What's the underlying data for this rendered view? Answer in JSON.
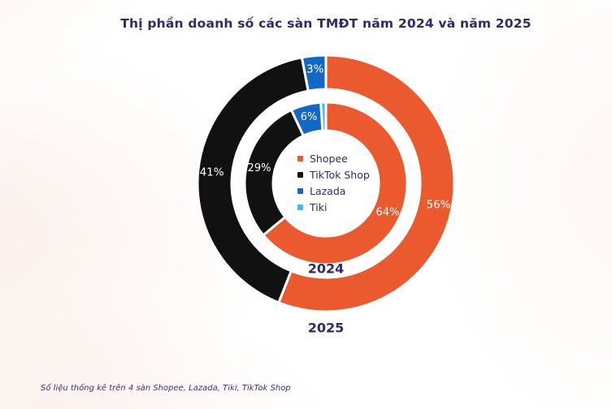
{
  "title": "Thị phần doanh số các sàn TMĐT năm 2024 và năm 2025",
  "footer": "Số liệu thống kê trên 4 sàn Shopee, Lazada, Tiki, TikTok Shop",
  "legend": [
    {
      "label": "Shopee",
      "color": "#ea5a2e"
    },
    {
      "label": "TikTok Shop",
      "color": "#111111"
    },
    {
      "label": "Lazada",
      "color": "#1268c4"
    },
    {
      "label": "Tiki",
      "color": "#3dbef1"
    }
  ],
  "chart_data": {
    "type": "pie",
    "subtype": "nested-donut",
    "title": "Thị phần doanh số các sàn TMĐT năm 2024 và năm 2025",
    "categories": [
      "Shopee",
      "TikTok Shop",
      "Lazada",
      "Tiki"
    ],
    "colors": {
      "Shopee": "#ea5a2e",
      "TikTok Shop": "#111111",
      "Lazada": "#1268c4",
      "Tiki": "#3dbef1"
    },
    "start_angle_deg": 0,
    "direction": "clockwise",
    "legend_position": "center",
    "rings": [
      {
        "year": "2025",
        "position": "outer",
        "segments": [
          {
            "name": "Shopee",
            "value": 56,
            "label": "56%"
          },
          {
            "name": "TikTok Shop",
            "value": 41,
            "label": "41%"
          },
          {
            "name": "Lazada",
            "value": 3,
            "label": "3%"
          },
          {
            "name": "Tiki",
            "value": 0,
            "label": ""
          }
        ]
      },
      {
        "year": "2024",
        "position": "inner",
        "segments": [
          {
            "name": "Shopee",
            "value": 64,
            "label": "64%"
          },
          {
            "name": "TikTok Shop",
            "value": 29,
            "label": "29%"
          },
          {
            "name": "Lazada",
            "value": 6,
            "label": "6%"
          },
          {
            "name": "Tiki",
            "value": 1,
            "label": ""
          }
        ]
      }
    ]
  }
}
